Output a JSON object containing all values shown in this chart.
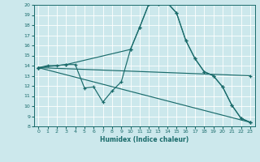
{
  "xlabel": "Humidex (Indice chaleur)",
  "xlim": [
    -0.5,
    23.5
  ],
  "ylim": [
    8,
    20
  ],
  "yticks": [
    8,
    9,
    10,
    11,
    12,
    13,
    14,
    15,
    16,
    17,
    18,
    19,
    20
  ],
  "xticks": [
    0,
    1,
    2,
    3,
    4,
    5,
    6,
    7,
    8,
    9,
    10,
    11,
    12,
    13,
    14,
    15,
    16,
    17,
    18,
    19,
    20,
    21,
    22,
    23
  ],
  "bg_color": "#cce8ec",
  "line_color": "#1a6b6b",
  "grid_color": "#b0d8dc",
  "lines": [
    {
      "x": [
        0,
        1,
        2,
        3,
        4,
        5,
        6,
        7,
        8,
        9,
        10,
        11,
        12,
        13,
        14,
        15,
        16,
        17,
        18,
        19,
        20,
        21,
        22,
        23
      ],
      "y": [
        13.8,
        14.0,
        14.0,
        14.1,
        14.1,
        11.8,
        11.9,
        10.4,
        11.5,
        12.4,
        15.6,
        17.8,
        20.1,
        20.1,
        20.2,
        19.2,
        16.5,
        14.7,
        13.4,
        13.0,
        11.9,
        10.1,
        8.8,
        8.4
      ]
    },
    {
      "x": [
        0,
        3,
        10,
        11,
        12,
        13,
        14,
        15,
        16,
        17,
        18,
        19,
        20,
        21,
        22,
        23
      ],
      "y": [
        13.8,
        14.1,
        15.6,
        17.8,
        20.1,
        20.1,
        20.2,
        19.2,
        16.5,
        14.7,
        13.4,
        13.0,
        11.9,
        10.1,
        8.8,
        8.4
      ]
    },
    {
      "x": [
        0,
        23
      ],
      "y": [
        13.8,
        8.4
      ]
    },
    {
      "x": [
        0,
        23
      ],
      "y": [
        13.8,
        13.0
      ]
    }
  ]
}
